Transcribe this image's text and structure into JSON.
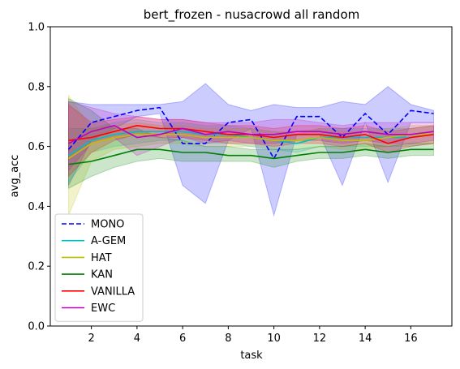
{
  "chart_data": {
    "type": "line",
    "title": "bert_frozen - nusacrowd all random",
    "xlabel": "task",
    "ylabel": "avg_acc",
    "xlim": [
      0.2,
      17.8
    ],
    "ylim": [
      0.0,
      1.0
    ],
    "xticks": [
      2,
      4,
      6,
      8,
      10,
      12,
      14,
      16
    ],
    "xtick_labels": [
      "2",
      "4",
      "6",
      "8",
      "10",
      "12",
      "14",
      "16"
    ],
    "yticks": [
      0.0,
      0.2,
      0.4,
      0.6,
      0.8,
      1.0
    ],
    "ytick_labels": [
      "0.0",
      "0.2",
      "0.4",
      "0.6",
      "0.8",
      "1.0"
    ],
    "grid": false,
    "legend_position": "lower-left",
    "x": [
      1,
      2,
      3,
      4,
      5,
      6,
      7,
      8,
      9,
      10,
      11,
      12,
      13,
      14,
      15,
      16,
      17
    ],
    "series": [
      {
        "name": "MONO",
        "color": "#0000ff",
        "dash": "dashed",
        "values": [
          0.59,
          0.68,
          0.7,
          0.72,
          0.73,
          0.61,
          0.61,
          0.68,
          0.69,
          0.56,
          0.7,
          0.7,
          0.63,
          0.71,
          0.64,
          0.72,
          0.71
        ],
        "lower": [
          0.47,
          0.62,
          0.66,
          0.7,
          0.71,
          0.47,
          0.41,
          0.62,
          0.66,
          0.37,
          0.64,
          0.64,
          0.47,
          0.68,
          0.48,
          0.68,
          0.68
        ],
        "upper": [
          0.75,
          0.74,
          0.74,
          0.74,
          0.74,
          0.75,
          0.81,
          0.74,
          0.72,
          0.74,
          0.73,
          0.73,
          0.75,
          0.74,
          0.8,
          0.74,
          0.72
        ]
      },
      {
        "name": "A-GEM",
        "color": "#00bfbf",
        "dash": "solid",
        "values": [
          0.57,
          0.62,
          0.64,
          0.65,
          0.65,
          0.65,
          0.64,
          0.64,
          0.63,
          0.62,
          0.61,
          0.63,
          0.63,
          0.63,
          0.63,
          0.63,
          0.64
        ],
        "lower": [
          0.48,
          0.58,
          0.6,
          0.61,
          0.62,
          0.62,
          0.61,
          0.61,
          0.6,
          0.59,
          0.58,
          0.6,
          0.6,
          0.6,
          0.6,
          0.6,
          0.61
        ],
        "upper": [
          0.66,
          0.66,
          0.68,
          0.69,
          0.68,
          0.68,
          0.67,
          0.67,
          0.66,
          0.65,
          0.64,
          0.66,
          0.66,
          0.66,
          0.66,
          0.66,
          0.67
        ]
      },
      {
        "name": "HAT",
        "color": "#bfbf00",
        "dash": "solid",
        "values": [
          0.56,
          0.61,
          0.63,
          0.64,
          0.64,
          0.64,
          0.63,
          0.63,
          0.63,
          0.62,
          0.62,
          0.63,
          0.62,
          0.62,
          0.63,
          0.64,
          0.64
        ],
        "lower": [
          0.37,
          0.55,
          0.59,
          0.6,
          0.61,
          0.61,
          0.6,
          0.6,
          0.6,
          0.59,
          0.59,
          0.6,
          0.59,
          0.59,
          0.6,
          0.61,
          0.61
        ],
        "upper": [
          0.77,
          0.66,
          0.67,
          0.68,
          0.67,
          0.67,
          0.66,
          0.66,
          0.66,
          0.65,
          0.65,
          0.66,
          0.65,
          0.65,
          0.66,
          0.67,
          0.67
        ]
      },
      {
        "name": "KAN",
        "color": "#008000",
        "dash": "solid",
        "values": [
          0.54,
          0.55,
          0.57,
          0.59,
          0.59,
          0.58,
          0.58,
          0.57,
          0.57,
          0.56,
          0.57,
          0.58,
          0.58,
          0.59,
          0.58,
          0.59,
          0.59
        ],
        "lower": [
          0.46,
          0.5,
          0.53,
          0.55,
          0.56,
          0.55,
          0.55,
          0.55,
          0.55,
          0.53,
          0.55,
          0.56,
          0.56,
          0.57,
          0.56,
          0.57,
          0.57
        ],
        "upper": [
          0.76,
          0.72,
          0.66,
          0.66,
          0.63,
          0.62,
          0.6,
          0.6,
          0.59,
          0.59,
          0.59,
          0.6,
          0.6,
          0.61,
          0.6,
          0.61,
          0.61
        ]
      },
      {
        "name": "VANILLA",
        "color": "#ff0000",
        "dash": "solid",
        "values": [
          0.62,
          0.63,
          0.65,
          0.67,
          0.66,
          0.66,
          0.65,
          0.64,
          0.64,
          0.63,
          0.64,
          0.64,
          0.63,
          0.64,
          0.61,
          0.63,
          0.64
        ],
        "lower": [
          0.5,
          0.58,
          0.62,
          0.64,
          0.63,
          0.63,
          0.62,
          0.61,
          0.61,
          0.6,
          0.61,
          0.61,
          0.6,
          0.61,
          0.58,
          0.6,
          0.61
        ],
        "upper": [
          0.74,
          0.68,
          0.69,
          0.7,
          0.69,
          0.69,
          0.68,
          0.67,
          0.67,
          0.66,
          0.67,
          0.67,
          0.66,
          0.67,
          0.65,
          0.66,
          0.67
        ]
      },
      {
        "name": "EWC",
        "color": "#bf00bf",
        "dash": "solid",
        "values": [
          0.61,
          0.65,
          0.67,
          0.63,
          0.64,
          0.66,
          0.64,
          0.65,
          0.64,
          0.64,
          0.65,
          0.65,
          0.64,
          0.65,
          0.64,
          0.64,
          0.65
        ],
        "lower": [
          0.52,
          0.61,
          0.63,
          0.57,
          0.6,
          0.63,
          0.61,
          0.62,
          0.61,
          0.61,
          0.62,
          0.62,
          0.61,
          0.62,
          0.61,
          0.61,
          0.62
        ],
        "upper": [
          0.75,
          0.73,
          0.71,
          0.7,
          0.69,
          0.69,
          0.68,
          0.68,
          0.68,
          0.69,
          0.69,
          0.68,
          0.67,
          0.68,
          0.68,
          0.68,
          0.68
        ]
      }
    ]
  }
}
